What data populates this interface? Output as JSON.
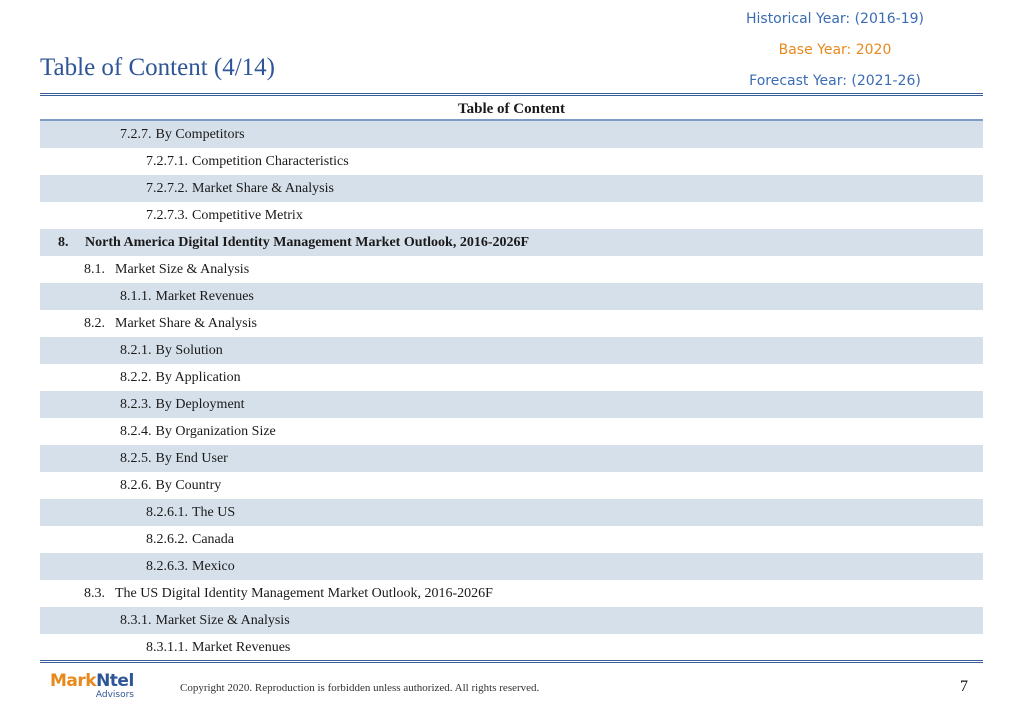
{
  "header": {
    "title": "Table of Content (4/14)",
    "historical_year": "Historical Year: (2016-19)",
    "base_year": "Base Year: 2020",
    "forecast_year": "Forecast Year: (2021-26)"
  },
  "toc": {
    "heading": "Table of Content",
    "rows": [
      {
        "num": "7.2.7.",
        "text": "By Competitors",
        "level": 2,
        "shade": true
      },
      {
        "num": "7.2.7.1.",
        "text": "Competition Characteristics",
        "level": 3,
        "shade": false
      },
      {
        "num": "7.2.7.2.",
        "text": "Market Share & Analysis",
        "level": 3,
        "shade": true
      },
      {
        "num": "7.2.7.3.",
        "text": "Competitive Metrix",
        "level": 3,
        "shade": false
      },
      {
        "num": "8.",
        "text": "North America Digital Identity Management Market Outlook, 2016-2026F",
        "level": 0,
        "shade": true
      },
      {
        "num": "8.1.",
        "text": "Market Size & Analysis",
        "level": 1,
        "shade": false
      },
      {
        "num": "8.1.1.",
        "text": "Market Revenues",
        "level": 2,
        "shade": true
      },
      {
        "num": "8.2.",
        "text": "Market Share & Analysis",
        "level": 1,
        "shade": false
      },
      {
        "num": "8.2.1.",
        "text": "By Solution",
        "level": 2,
        "shade": true
      },
      {
        "num": "8.2.2.",
        "text": "By Application",
        "level": 2,
        "shade": false
      },
      {
        "num": "8.2.3.",
        "text": "By Deployment",
        "level": 2,
        "shade": true
      },
      {
        "num": "8.2.4.",
        "text": "By Organization Size",
        "level": 2,
        "shade": false
      },
      {
        "num": "8.2.5.",
        "text": "By End User",
        "level": 2,
        "shade": true
      },
      {
        "num": "8.2.6.",
        "text": "By Country",
        "level": 2,
        "shade": false
      },
      {
        "num": "8.2.6.1.",
        "text": "The US",
        "level": 3,
        "shade": true
      },
      {
        "num": "8.2.6.2.",
        "text": "Canada",
        "level": 3,
        "shade": false
      },
      {
        "num": "8.2.6.3.",
        "text": "Mexico",
        "level": 3,
        "shade": true
      },
      {
        "num": "8.3.",
        "text": "The US Digital Identity Management Market Outlook, 2016-2026F",
        "level": 1,
        "shade": false
      },
      {
        "num": "8.3.1.",
        "text": "Market Size & Analysis",
        "level": 2,
        "shade": true
      },
      {
        "num": "8.3.1.1.",
        "text": "Market Revenues",
        "level": 3,
        "shade": false
      }
    ]
  },
  "footer": {
    "logo_mark": "Mark",
    "logo_ntel": "Ntel",
    "logo_sub": "Advisors",
    "copyright": "Copyright 2020. Reproduction is forbidden unless authorized. All rights reserved.",
    "page_number": "7"
  },
  "colors": {
    "title_blue": "#2e5597",
    "base_year_orange": "#e8891d",
    "row_shade": "#d6e0ea"
  }
}
